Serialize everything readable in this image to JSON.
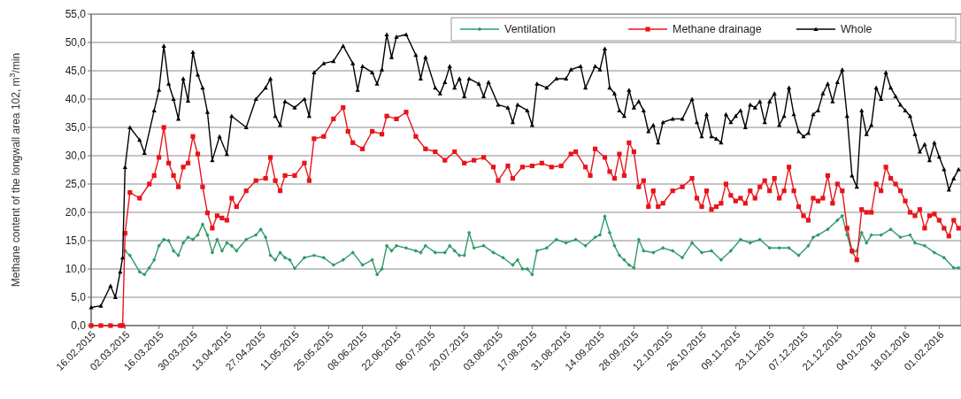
{
  "chart_data": {
    "type": "line",
    "ylabel": "Methane content of the longwall area 102, m$^{3}$/min",
    "xlim": [
      "2015-02-16",
      "2016-02-10"
    ],
    "ylim": [
      0,
      55
    ],
    "yticks": [
      {
        "value": 0,
        "label": "0,0"
      },
      {
        "value": 5,
        "label": "5,0"
      },
      {
        "value": 10,
        "label": "10,0"
      },
      {
        "value": 15,
        "label": "15,0"
      },
      {
        "value": 20,
        "label": "20,0"
      },
      {
        "value": 25,
        "label": "25,0"
      },
      {
        "value": 30,
        "label": "30,0"
      },
      {
        "value": 35,
        "label": "35,0"
      },
      {
        "value": 40,
        "label": "40,0"
      },
      {
        "value": 45,
        "label": "45,0"
      },
      {
        "value": 50,
        "label": "50,0"
      },
      {
        "value": 55,
        "label": "55,0"
      }
    ],
    "xticks": [
      {
        "value": "2015-02-16",
        "label": "16.02.2015"
      },
      {
        "value": "2015-03-02",
        "label": "02.03.2015"
      },
      {
        "value": "2015-03-16",
        "label": "16.03.2015"
      },
      {
        "value": "2015-03-30",
        "label": "30.03.2015"
      },
      {
        "value": "2015-04-13",
        "label": "13.04.2015"
      },
      {
        "value": "2015-04-27",
        "label": "27.04.2015"
      },
      {
        "value": "2015-05-11",
        "label": "11.05.2015"
      },
      {
        "value": "2015-05-25",
        "label": "25.05.2015"
      },
      {
        "value": "2015-06-08",
        "label": "08.06.2015"
      },
      {
        "value": "2015-06-22",
        "label": "22.06.2015"
      },
      {
        "value": "2015-07-06",
        "label": "06.07.2015"
      },
      {
        "value": "2015-07-20",
        "label": "20.07.2015"
      },
      {
        "value": "2015-08-03",
        "label": "03.08.2015"
      },
      {
        "value": "2015-08-17",
        "label": "17.08.2015"
      },
      {
        "value": "2015-08-31",
        "label": "31.08.2015"
      },
      {
        "value": "2015-09-14",
        "label": "14.09.2015"
      },
      {
        "value": "2015-09-28",
        "label": "28.09.2015"
      },
      {
        "value": "2015-10-12",
        "label": "12.10.2015"
      },
      {
        "value": "2015-10-26",
        "label": "26.10.2015"
      },
      {
        "value": "2015-11-09",
        "label": "09.11.2015"
      },
      {
        "value": "2015-11-23",
        "label": "23.11.2015"
      },
      {
        "value": "2015-12-07",
        "label": "07.12.2015"
      },
      {
        "value": "2015-12-21",
        "label": "21.12.2015"
      },
      {
        "value": "2016-01-04",
        "label": "04.01.2016"
      },
      {
        "value": "2016-01-18",
        "label": "18.01.2016"
      },
      {
        "value": "2016-02-01",
        "label": "01.02.2016"
      }
    ],
    "grid": "y",
    "legend": "top right",
    "line_style": "solid",
    "series": [
      {
        "name": "Ventilation",
        "color": "#2e9a6a",
        "marker": "diamond",
        "x": [
          "2015-03-02",
          "2015-03-04",
          "2015-03-08",
          "2015-03-10",
          "2015-03-12",
          "2015-03-14",
          "2015-03-16",
          "2015-03-18",
          "2015-03-20",
          "2015-03-22",
          "2015-03-24",
          "2015-03-26",
          "2015-03-28",
          "2015-03-30",
          "2015-04-01",
          "2015-04-03",
          "2015-04-05",
          "2015-04-07",
          "2015-04-09",
          "2015-04-11",
          "2015-04-13",
          "2015-04-15",
          "2015-04-17",
          "2015-04-21",
          "2015-04-25",
          "2015-04-27",
          "2015-04-29",
          "2015-05-01",
          "2015-05-03",
          "2015-05-05",
          "2015-05-07",
          "2015-05-09",
          "2015-05-11",
          "2015-05-15",
          "2015-05-19",
          "2015-05-23",
          "2015-05-27",
          "2015-05-31",
          "2015-06-04",
          "2015-06-08",
          "2015-06-12",
          "2015-06-14",
          "2015-06-16",
          "2015-06-18",
          "2015-06-20",
          "2015-06-22",
          "2015-06-26",
          "2015-06-30",
          "2015-07-02",
          "2015-07-04",
          "2015-07-08",
          "2015-07-12",
          "2015-07-14",
          "2015-07-16",
          "2015-07-18",
          "2015-07-20",
          "2015-07-22",
          "2015-07-24",
          "2015-07-28",
          "2015-08-01",
          "2015-08-05",
          "2015-08-09",
          "2015-08-11",
          "2015-08-13",
          "2015-08-15",
          "2015-08-17",
          "2015-08-19",
          "2015-08-23",
          "2015-08-27",
          "2015-08-31",
          "2015-09-04",
          "2015-09-08",
          "2015-09-12",
          "2015-09-14",
          "2015-09-16",
          "2015-09-18",
          "2015-09-20",
          "2015-09-22",
          "2015-09-24",
          "2015-09-26",
          "2015-09-28",
          "2015-09-30",
          "2015-10-02",
          "2015-10-06",
          "2015-10-10",
          "2015-10-14",
          "2015-10-18",
          "2015-10-22",
          "2015-10-26",
          "2015-10-30",
          "2015-11-03",
          "2015-11-07",
          "2015-11-11",
          "2015-11-15",
          "2015-11-19",
          "2015-11-23",
          "2015-11-27",
          "2015-12-01",
          "2015-12-05",
          "2015-12-09",
          "2015-12-11",
          "2015-12-13",
          "2015-12-17",
          "2015-12-21",
          "2015-12-23",
          "2015-12-25",
          "2015-12-27",
          "2015-12-29",
          "2015-12-31",
          "2016-01-02",
          "2016-01-04",
          "2016-01-08",
          "2016-01-12",
          "2016-01-16",
          "2016-01-20",
          "2016-01-22",
          "2016-01-26",
          "2016-01-30",
          "2016-02-03",
          "2016-02-07",
          "2016-02-09"
        ],
        "values": [
          13.2,
          12.4,
          9.5,
          9,
          10.2,
          11.6,
          14.1,
          15.2,
          15,
          13.2,
          12.4,
          14.6,
          15.6,
          15.2,
          16,
          17.9,
          16,
          12.9,
          15.2,
          13.2,
          14.6,
          14.1,
          13.2,
          15.2,
          16,
          17,
          15.6,
          12.4,
          11.6,
          12.9,
          12,
          11.6,
          10.1,
          12,
          12.4,
          12,
          10.7,
          11.6,
          12.9,
          10.7,
          11.6,
          9,
          10,
          14.1,
          13.2,
          14.1,
          13.7,
          13.2,
          12.9,
          14.1,
          12.9,
          12.9,
          14.1,
          13.2,
          12.4,
          12.4,
          16.4,
          13.7,
          14.1,
          12.9,
          12,
          10.7,
          11.6,
          10,
          10,
          9,
          13.2,
          13.7,
          15.2,
          14.6,
          15.2,
          14.1,
          15.6,
          16,
          19.3,
          16.4,
          14.1,
          12.4,
          11.6,
          10.7,
          10.2,
          15.2,
          13.2,
          12.9,
          13.7,
          13.2,
          12,
          14.6,
          12.9,
          13.2,
          11.6,
          13.2,
          15.2,
          14.6,
          15.2,
          13.7,
          13.7,
          13.7,
          12.4,
          14.1,
          15.6,
          16,
          17,
          18.6,
          19.4,
          16,
          12.9,
          13.2,
          16.4,
          14.6,
          16,
          16,
          17,
          15.6,
          16,
          14.6,
          14.1,
          12.9,
          12,
          10.2,
          10.2
        ]
      },
      {
        "name": "Methane drainage",
        "color": "#e8141a",
        "marker": "square",
        "x": [
          "2015-02-16",
          "2015-02-20",
          "2015-02-24",
          "2015-02-28",
          "2015-03-01",
          "2015-03-02",
          "2015-03-04",
          "2015-03-08",
          "2015-03-12",
          "2015-03-14",
          "2015-03-16",
          "2015-03-18",
          "2015-03-20",
          "2015-03-22",
          "2015-03-24",
          "2015-03-26",
          "2015-03-28",
          "2015-03-30",
          "2015-04-01",
          "2015-04-03",
          "2015-04-05",
          "2015-04-07",
          "2015-04-09",
          "2015-04-11",
          "2015-04-13",
          "2015-04-15",
          "2015-04-17",
          "2015-04-21",
          "2015-04-25",
          "2015-04-29",
          "2015-05-01",
          "2015-05-03",
          "2015-05-05",
          "2015-05-07",
          "2015-05-11",
          "2015-05-15",
          "2015-05-17",
          "2015-05-19",
          "2015-05-23",
          "2015-05-27",
          "2015-05-31",
          "2015-06-02",
          "2015-06-04",
          "2015-06-08",
          "2015-06-12",
          "2015-06-16",
          "2015-06-18",
          "2015-06-22",
          "2015-06-26",
          "2015-06-30",
          "2015-07-04",
          "2015-07-08",
          "2015-07-12",
          "2015-07-16",
          "2015-07-20",
          "2015-07-24",
          "2015-07-28",
          "2015-08-01",
          "2015-08-03",
          "2015-08-07",
          "2015-08-09",
          "2015-08-13",
          "2015-08-17",
          "2015-08-21",
          "2015-08-25",
          "2015-08-29",
          "2015-09-02",
          "2015-09-04",
          "2015-09-08",
          "2015-09-10",
          "2015-09-12",
          "2015-09-16",
          "2015-09-18",
          "2015-09-20",
          "2015-09-22",
          "2015-09-24",
          "2015-09-26",
          "2015-09-28",
          "2015-09-30",
          "2015-10-02",
          "2015-10-04",
          "2015-10-06",
          "2015-10-08",
          "2015-10-10",
          "2015-10-14",
          "2015-10-18",
          "2015-10-22",
          "2015-10-24",
          "2015-10-26",
          "2015-10-28",
          "2015-10-30",
          "2015-11-01",
          "2015-11-03",
          "2015-11-05",
          "2015-11-07",
          "2015-11-09",
          "2015-11-11",
          "2015-11-13",
          "2015-11-15",
          "2015-11-17",
          "2015-11-19",
          "2015-11-21",
          "2015-11-23",
          "2015-11-25",
          "2015-11-27",
          "2015-11-29",
          "2015-12-01",
          "2015-12-03",
          "2015-12-05",
          "2015-12-07",
          "2015-12-09",
          "2015-12-11",
          "2015-12-13",
          "2015-12-15",
          "2015-12-17",
          "2015-12-19",
          "2015-12-21",
          "2015-12-23",
          "2015-12-25",
          "2015-12-27",
          "2015-12-29",
          "2015-12-31",
          "2016-01-02",
          "2016-01-04",
          "2016-01-06",
          "2016-01-08",
          "2016-01-10",
          "2016-01-12",
          "2016-01-14",
          "2016-01-16",
          "2016-01-18",
          "2016-01-20",
          "2016-01-22",
          "2016-01-24",
          "2016-01-26",
          "2016-01-28",
          "2016-01-30",
          "2016-02-01",
          "2016-02-03",
          "2016-02-05",
          "2016-02-07",
          "2016-02-09"
        ],
        "values": [
          0,
          0,
          0,
          0,
          0,
          16.3,
          23.5,
          22.5,
          25,
          26.5,
          29.7,
          35,
          28.7,
          26.5,
          24.5,
          28,
          28.7,
          33.4,
          30.3,
          24.5,
          19.9,
          17.2,
          19.4,
          19,
          18.6,
          22.5,
          21,
          23.8,
          25.6,
          26,
          29.7,
          25.6,
          23.8,
          26.5,
          26.5,
          28.7,
          25.6,
          33,
          33.4,
          36.5,
          38.5,
          34.3,
          32.3,
          31.2,
          34.3,
          33.8,
          37,
          36.5,
          37.7,
          33.4,
          31.2,
          30.7,
          29.2,
          30.7,
          28.7,
          29.2,
          29.7,
          28,
          25.6,
          28.2,
          26,
          28,
          28.2,
          28.7,
          28,
          28.2,
          30.3,
          30.7,
          28,
          26.5,
          31.2,
          29.7,
          27.2,
          26,
          30.3,
          26.5,
          32.3,
          30.7,
          24.5,
          25.6,
          21,
          23.8,
          21,
          21.6,
          23.8,
          24.5,
          26,
          22.5,
          21,
          23.8,
          20.5,
          21,
          21.6,
          25,
          23,
          22,
          22.5,
          21.6,
          23.8,
          22.5,
          24.5,
          25.6,
          23.8,
          26,
          22.5,
          23.8,
          28,
          23.8,
          21,
          19.4,
          18.6,
          22.5,
          22,
          22.5,
          26.5,
          21.6,
          25,
          23.8,
          17.2,
          13.2,
          11.6,
          20.5,
          20,
          20,
          25,
          23.8,
          28,
          26,
          25,
          23.8,
          22,
          20,
          19.4,
          20.5,
          17.2,
          19.4,
          19.7,
          18.6,
          17.2,
          15.8,
          18.6,
          17.2
        ]
      },
      {
        "name": "Whole",
        "color": "#000000",
        "marker": "triangle",
        "x": [
          "2015-02-16",
          "2015-02-20",
          "2015-02-24",
          "2015-02-26",
          "2015-02-28",
          "2015-03-01",
          "2015-03-02",
          "2015-03-04",
          "2015-03-08",
          "2015-03-10",
          "2015-03-14",
          "2015-03-16",
          "2015-03-18",
          "2015-03-20",
          "2015-03-22",
          "2015-03-24",
          "2015-03-26",
          "2015-03-28",
          "2015-03-30",
          "2015-04-01",
          "2015-04-03",
          "2015-04-05",
          "2015-04-07",
          "2015-04-10",
          "2015-04-13",
          "2015-04-15",
          "2015-04-21",
          "2015-04-25",
          "2015-04-29",
          "2015-05-01",
          "2015-05-03",
          "2015-05-05",
          "2015-05-07",
          "2015-05-11",
          "2015-05-15",
          "2015-05-17",
          "2015-05-19",
          "2015-05-23",
          "2015-05-27",
          "2015-05-31",
          "2015-06-04",
          "2015-06-06",
          "2015-06-08",
          "2015-06-12",
          "2015-06-14",
          "2015-06-16",
          "2015-06-18",
          "2015-06-20",
          "2015-06-22",
          "2015-06-26",
          "2015-06-30",
          "2015-07-02",
          "2015-07-04",
          "2015-07-08",
          "2015-07-10",
          "2015-07-12",
          "2015-07-14",
          "2015-07-16",
          "2015-07-18",
          "2015-07-20",
          "2015-07-22",
          "2015-07-26",
          "2015-07-28",
          "2015-07-30",
          "2015-08-03",
          "2015-08-07",
          "2015-08-09",
          "2015-08-11",
          "2015-08-15",
          "2015-08-17",
          "2015-08-19",
          "2015-08-23",
          "2015-08-27",
          "2015-08-31",
          "2015-09-02",
          "2015-09-06",
          "2015-09-08",
          "2015-09-12",
          "2015-09-14",
          "2015-09-16",
          "2015-09-18",
          "2015-09-20",
          "2015-09-22",
          "2015-09-24",
          "2015-09-26",
          "2015-09-28",
          "2015-09-30",
          "2015-10-02",
          "2015-10-04",
          "2015-10-06",
          "2015-10-08",
          "2015-10-10",
          "2015-10-14",
          "2015-10-18",
          "2015-10-22",
          "2015-10-24",
          "2015-10-26",
          "2015-10-28",
          "2015-10-30",
          "2015-11-01",
          "2015-11-03",
          "2015-11-05",
          "2015-11-07",
          "2015-11-09",
          "2015-11-11",
          "2015-11-13",
          "2015-11-15",
          "2015-11-17",
          "2015-11-19",
          "2015-11-21",
          "2015-11-23",
          "2015-11-25",
          "2015-11-27",
          "2015-11-29",
          "2015-12-01",
          "2015-12-03",
          "2015-12-05",
          "2015-12-07",
          "2015-12-09",
          "2015-12-11",
          "2015-12-13",
          "2015-12-15",
          "2015-12-17",
          "2015-12-19",
          "2015-12-21",
          "2015-12-23",
          "2015-12-25",
          "2015-12-27",
          "2015-12-29",
          "2015-12-31",
          "2016-01-02",
          "2016-01-04",
          "2016-01-06",
          "2016-01-08",
          "2016-01-10",
          "2016-01-12",
          "2016-01-14",
          "2016-01-16",
          "2016-01-18",
          "2016-01-20",
          "2016-01-22",
          "2016-01-24",
          "2016-01-26",
          "2016-01-28",
          "2016-01-30",
          "2016-02-01",
          "2016-02-03",
          "2016-02-05",
          "2016-02-07",
          "2016-02-09"
        ],
        "values": [
          3.2,
          3.5,
          7,
          5,
          9.5,
          12,
          28,
          35,
          32.8,
          30.5,
          38,
          41.6,
          49.4,
          42.7,
          40,
          36.5,
          43.6,
          39.7,
          48.3,
          44.3,
          42,
          37.7,
          29.2,
          33.4,
          30.3,
          37,
          35,
          40,
          42,
          43.6,
          37,
          35.4,
          39.6,
          38.5,
          40,
          37,
          44.7,
          46.3,
          46.7,
          49.4,
          46.3,
          41.6,
          45.8,
          44.7,
          42.7,
          45.2,
          51.4,
          47.4,
          51,
          51.4,
          47.8,
          43.6,
          47.4,
          42,
          41,
          43,
          45.8,
          42,
          43.6,
          40.5,
          43.6,
          42.7,
          40.5,
          43,
          39,
          38.5,
          35.9,
          39,
          38,
          35.4,
          42.7,
          42,
          43.6,
          43.6,
          45.2,
          45.8,
          42,
          45.8,
          45.2,
          48.9,
          42,
          41,
          38,
          37,
          41.6,
          38.5,
          39.6,
          38,
          34.3,
          35.4,
          32.3,
          35.9,
          36.5,
          36.5,
          40,
          35.9,
          33.4,
          37.3,
          33.4,
          33,
          32.3,
          37.3,
          35.9,
          37,
          38,
          35,
          39,
          38.5,
          39.6,
          35.9,
          39.6,
          41,
          35.4,
          37,
          42,
          37.3,
          34.3,
          33.4,
          34,
          37.3,
          38,
          41,
          42.7,
          39.6,
          43,
          45.2,
          37,
          26.5,
          24.5,
          38,
          33.8,
          35.4,
          42,
          40,
          44.7,
          42,
          40.5,
          39,
          38,
          37,
          33.8,
          30.7,
          32,
          29.2,
          32.3,
          29.8,
          27.6,
          24,
          26,
          27.6
        ]
      }
    ]
  }
}
